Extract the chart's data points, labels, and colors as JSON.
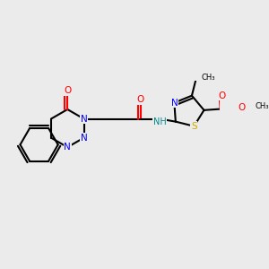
{
  "background_color": "#ebebeb",
  "bond_color": "#000000",
  "bond_lw": 1.5,
  "atom_colors": {
    "N": "#0000ff",
    "O": "#ff0000",
    "S": "#ccaa00",
    "C": "#000000",
    "NH": "#008888"
  },
  "fs": 7.5
}
